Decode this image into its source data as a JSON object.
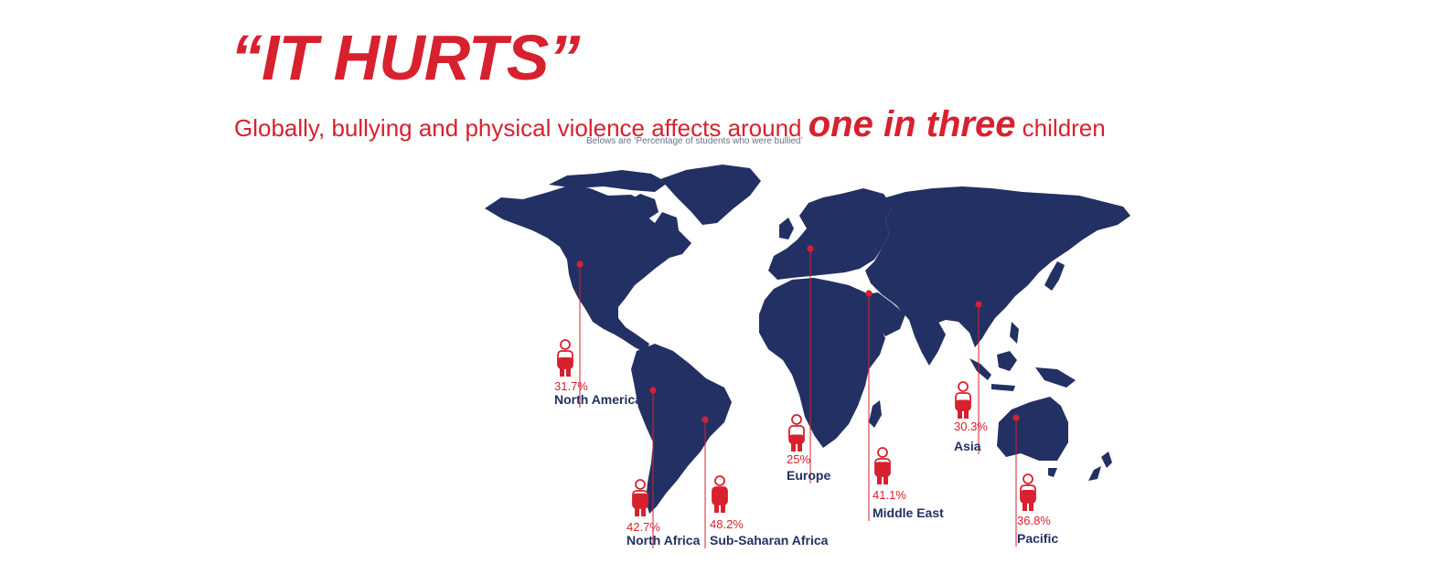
{
  "header": {
    "title": "“IT HURTS”",
    "subtitle_pre": "Globally, bullying and physical violence affects around ",
    "subtitle_em": "one in three",
    "subtitle_post": " children",
    "note": "Belows are ‘Percentage of students who were bullied’"
  },
  "colors": {
    "accent": "#d7212f",
    "map": "#233063",
    "background": "#ffffff"
  },
  "chart_data": {
    "type": "map",
    "title": "Percentage of students who were bullied",
    "unit": "%",
    "regions": [
      {
        "name": "North America",
        "label": "31.7%",
        "value": 31.7
      },
      {
        "name": "North Africa",
        "label": "42.7%",
        "value": 42.7
      },
      {
        "name": "Sub-Saharan Africa",
        "label": "48.2%",
        "value": 48.2
      },
      {
        "name": "Europe",
        "label": "25%",
        "value": 25
      },
      {
        "name": "Middle East",
        "label": "41.1%",
        "value": 41.1
      },
      {
        "name": "Asia",
        "label": "30.3%",
        "value": 30.3
      },
      {
        "name": "Pacific",
        "label": "36.8%",
        "value": 36.8
      }
    ]
  }
}
